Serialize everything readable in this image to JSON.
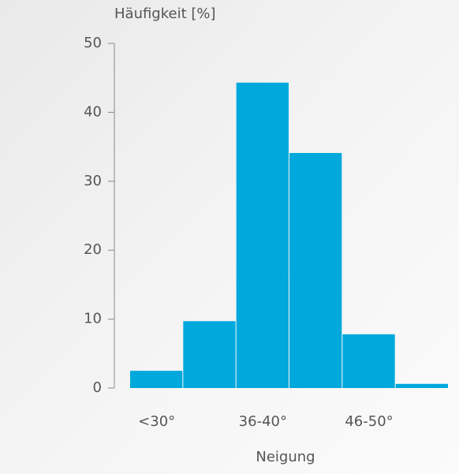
{
  "chart_data": {
    "type": "bar",
    "y_axis_label": "Häufigkeit [%]",
    "x_axis_label": "Neigung",
    "categories": [
      "<30°",
      null,
      "36-40°",
      null,
      "46-50°",
      null
    ],
    "values": [
      2.5,
      9.7,
      44.3,
      34.1,
      7.8,
      0.6
    ],
    "color": "#00a8dc",
    "ylim": [
      0,
      50
    ],
    "yticks": [
      0,
      10,
      20,
      30,
      40,
      50
    ],
    "grid": false
  }
}
